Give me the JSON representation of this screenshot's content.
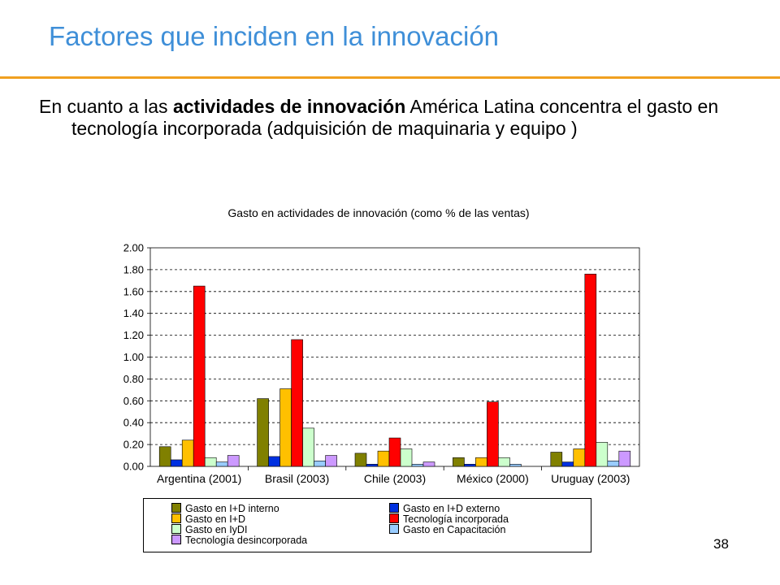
{
  "slide": {
    "title": "Factores que inciden en la innovación",
    "intro_before": "En cuanto a las ",
    "intro_bold": "actividades de innovación",
    "intro_after": " América Latina concentra el gasto en tecnología incorporada (adquisición de maquinaria y equipo )",
    "page_number": "38"
  },
  "colors": {
    "title": "#3f8fd8",
    "rule": "#f0a020"
  },
  "chart_data": {
    "type": "bar",
    "title": "Gasto en actividades de innovación (como % de las ventas)",
    "xlabel": "",
    "ylabel": "",
    "ylim": [
      0,
      2
    ],
    "yticks": [
      "0.00",
      "0.20",
      "0.40",
      "0.60",
      "0.80",
      "1.00",
      "1.20",
      "1.40",
      "1.60",
      "1.80",
      "2.00"
    ],
    "grid": true,
    "legend_position": "bottom",
    "categories": [
      "Argentina (2001)",
      "Brasil (2003)",
      "Chile (2003)",
      "México (2000)",
      "Uruguay (2003)"
    ],
    "series": [
      {
        "name": "Gasto en I+D interno",
        "color": "#808000",
        "values": [
          0.18,
          0.62,
          0.12,
          0.08,
          0.13
        ]
      },
      {
        "name": "Gasto en I+D externo",
        "color": "#0030e0",
        "values": [
          0.06,
          0.09,
          0.02,
          0.02,
          0.04
        ]
      },
      {
        "name": "Gasto en I+D",
        "color": "#ffc000",
        "values": [
          0.24,
          0.71,
          0.14,
          0.08,
          0.16
        ]
      },
      {
        "name": "Tecnología incorporada",
        "color": "#ff0000",
        "values": [
          1.65,
          1.16,
          0.26,
          0.59,
          1.76
        ]
      },
      {
        "name": "Gasto en IyDI",
        "color": "#ccffcc",
        "values": [
          0.08,
          0.35,
          0.16,
          0.08,
          0.22
        ]
      },
      {
        "name": "Gasto en Capacitación",
        "color": "#99ccff",
        "values": [
          0.04,
          0.05,
          0.02,
          0.02,
          0.05
        ]
      },
      {
        "name": "Tecnología desincorporada",
        "color": "#cc99ff",
        "values": [
          0.1,
          0.1,
          0.04,
          0.0,
          0.14
        ]
      }
    ]
  }
}
